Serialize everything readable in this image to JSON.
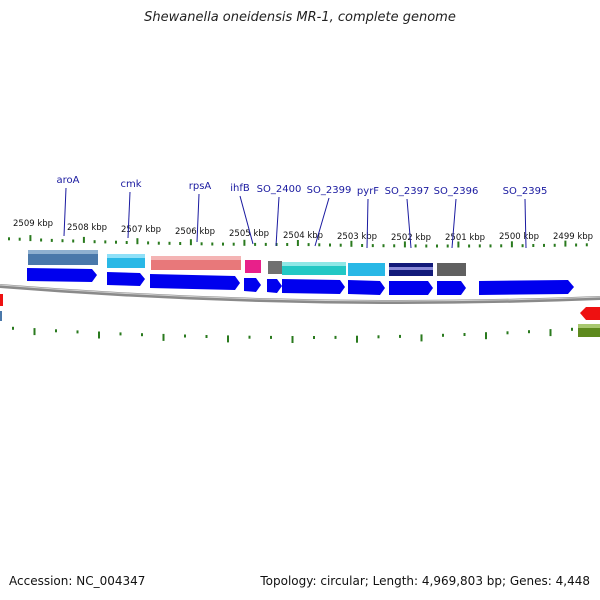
{
  "title": "Shewanella oneidensis MR-1, complete genome",
  "footer": {
    "accession": "Accession: NC_004347",
    "summary": "Topology: circular; Length: 4,969,803 bp; Genes: 4,448"
  },
  "colors": {
    "gene_arrow": "#0000ee",
    "backbone": "#888888",
    "tick": "#2a7a1e",
    "label": "#1a1aa0"
  },
  "kbp_labels": [
    "2509 kbp",
    "2508 kbp",
    "2507 kbp",
    "2506 kbp",
    "2505 kbp",
    "2504 kbp",
    "2503 kbp",
    "2502 kbp",
    "2501 kbp",
    "2500 kbp",
    "2499 kbp"
  ],
  "gene_labels": [
    {
      "name": "aroA",
      "color": "#4a78aa"
    },
    {
      "name": "cmk",
      "color": "#29b8e6"
    },
    {
      "name": "rpsA",
      "color": "#e8787a"
    },
    {
      "name": "ihfB",
      "color": "#e8208a"
    },
    {
      "name": "SO_2400",
      "color": "#555555"
    },
    {
      "name": "SO_2399",
      "color": "#22c8c4"
    },
    {
      "name": "pyrF",
      "color": "#29b8e6"
    },
    {
      "name": "SO_2397",
      "color": "#121a7a"
    },
    {
      "name": "SO_2396",
      "color": "#606060"
    },
    {
      "name": "SO_2395",
      "color": "#0000ee"
    }
  ]
}
